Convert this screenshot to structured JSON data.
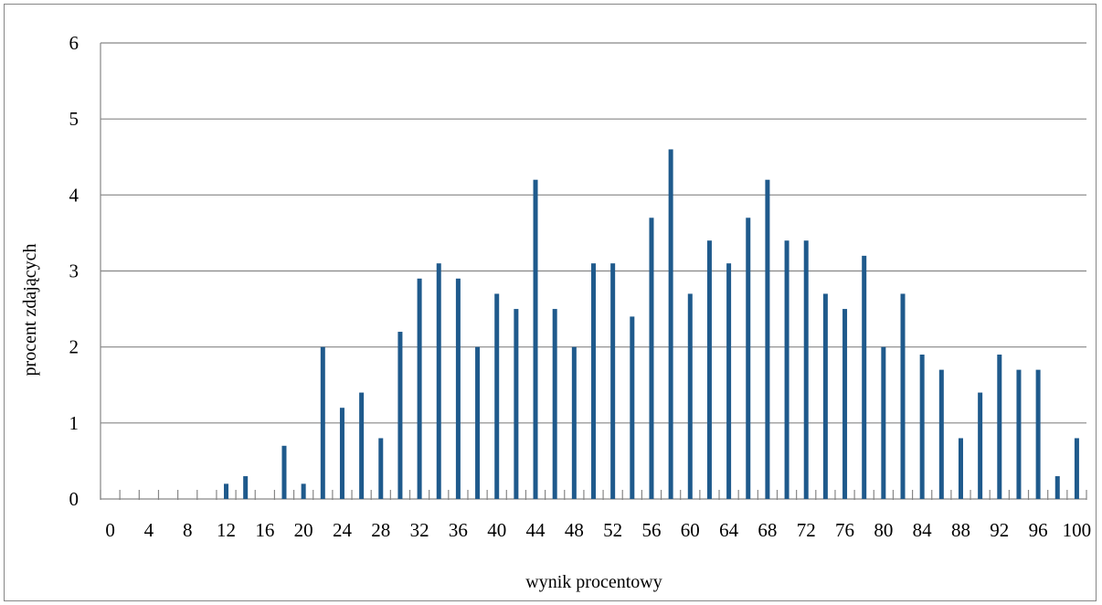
{
  "chart_data": {
    "type": "bar",
    "title": "",
    "xlabel": "wynik procentowy",
    "ylabel": "procent zdających",
    "ylim": [
      0,
      6
    ],
    "yticks": [
      "0",
      "1",
      "2",
      "3",
      "4",
      "5",
      "6"
    ],
    "xtick_labels": [
      "0",
      "4",
      "8",
      "12",
      "16",
      "20",
      "24",
      "28",
      "32",
      "36",
      "40",
      "44",
      "48",
      "52",
      "56",
      "60",
      "64",
      "68",
      "72",
      "76",
      "80",
      "84",
      "88",
      "92",
      "96",
      "100"
    ],
    "grid": "horizontal",
    "legend": "none",
    "bar_color": "#1f5a8c",
    "x": [
      0,
      2,
      4,
      6,
      8,
      10,
      12,
      14,
      16,
      18,
      20,
      22,
      24,
      26,
      28,
      30,
      32,
      34,
      36,
      38,
      40,
      42,
      44,
      46,
      48,
      50,
      52,
      54,
      56,
      58,
      60,
      62,
      64,
      66,
      68,
      70,
      72,
      74,
      76,
      78,
      80,
      82,
      84,
      86,
      88,
      90,
      92,
      94,
      96,
      98,
      100
    ],
    "values": [
      0,
      0,
      0,
      0,
      0,
      0,
      0.2,
      0.3,
      0,
      0.7,
      0.2,
      2.0,
      1.2,
      1.4,
      0.8,
      2.2,
      2.9,
      3.1,
      2.9,
      2.0,
      2.7,
      2.5,
      4.2,
      2.5,
      2.0,
      3.1,
      3.1,
      2.4,
      3.7,
      4.6,
      2.7,
      3.4,
      3.1,
      3.7,
      4.2,
      3.4,
      3.4,
      2.7,
      2.5,
      3.2,
      2.0,
      2.7,
      1.9,
      1.7,
      0.8,
      1.4,
      1.9,
      1.7,
      1.7,
      0.3,
      0.8
    ]
  }
}
